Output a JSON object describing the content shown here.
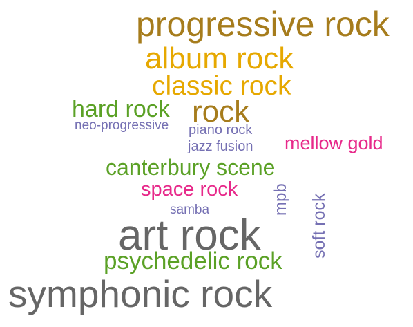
{
  "word_cloud": {
    "words": [
      {
        "id": "progressive-rock",
        "text": "progressive rock",
        "color": "#A67C1C",
        "orientation": "horizontal"
      },
      {
        "id": "album-rock",
        "text": "album rock",
        "color": "#E6A800",
        "orientation": "horizontal"
      },
      {
        "id": "classic-rock",
        "text": "classic rock",
        "color": "#E6A800",
        "orientation": "horizontal"
      },
      {
        "id": "hard-rock",
        "text": "hard rock",
        "color": "#5BA126",
        "orientation": "horizontal"
      },
      {
        "id": "rock",
        "text": "rock",
        "color": "#A67C1C",
        "orientation": "horizontal"
      },
      {
        "id": "neo-progressive",
        "text": "neo-progressive",
        "color": "#7570B3",
        "orientation": "horizontal"
      },
      {
        "id": "piano-rock",
        "text": "piano rock",
        "color": "#7570B3",
        "orientation": "horizontal"
      },
      {
        "id": "jazz-fusion",
        "text": "jazz fusion",
        "color": "#7570B3",
        "orientation": "horizontal"
      },
      {
        "id": "mellow-gold",
        "text": "mellow gold",
        "color": "#E7298A",
        "orientation": "horizontal"
      },
      {
        "id": "canterbury-scene",
        "text": "canterbury scene",
        "color": "#5BA126",
        "orientation": "horizontal"
      },
      {
        "id": "space-rock",
        "text": "space rock",
        "color": "#E7298A",
        "orientation": "horizontal"
      },
      {
        "id": "samba",
        "text": "samba",
        "color": "#7570B3",
        "orientation": "horizontal"
      },
      {
        "id": "mpb",
        "text": "mpb",
        "color": "#7570B3",
        "orientation": "vertical"
      },
      {
        "id": "soft-rock",
        "text": "soft rock",
        "color": "#7570B3",
        "orientation": "vertical"
      },
      {
        "id": "art-rock",
        "text": "art rock",
        "color": "#666666",
        "orientation": "horizontal"
      },
      {
        "id": "psychedelic-rock",
        "text": "psychedelic rock",
        "color": "#5BA126",
        "orientation": "horizontal"
      },
      {
        "id": "symphonic-rock",
        "text": "symphonic rock",
        "color": "#666666",
        "orientation": "horizontal"
      }
    ]
  }
}
